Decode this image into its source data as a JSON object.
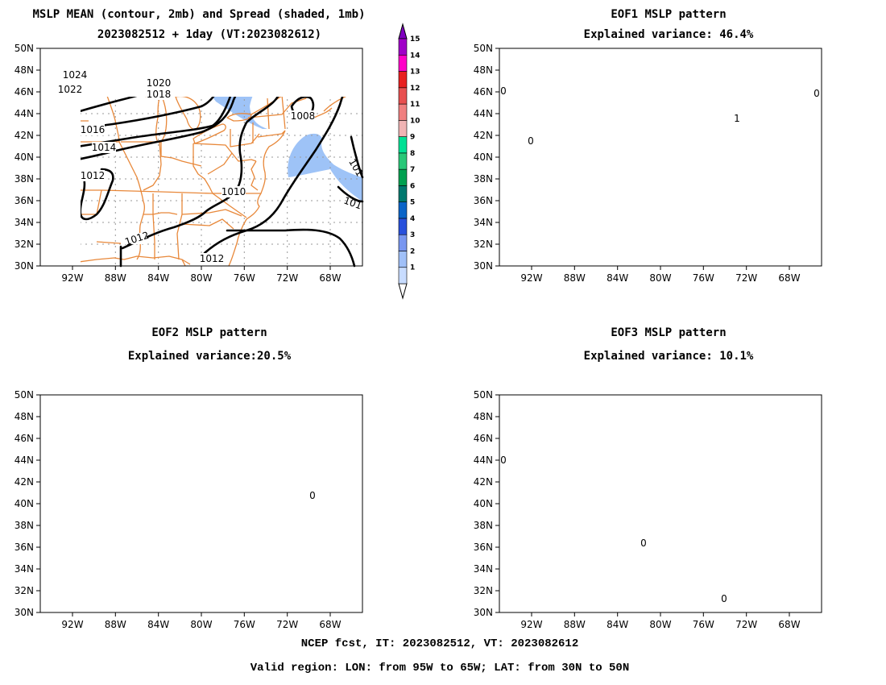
{
  "panels": [
    {
      "id": "mean",
      "title1": "MSLP MEAN (contour, 2mb) and Spread (shaded, 1mb)",
      "title2": "2023082512 + 1day (VT:2023082612)"
    },
    {
      "id": "eof1",
      "title1": "EOF1 MSLP pattern",
      "title2": "Explained variance: 46.4%"
    },
    {
      "id": "eof2",
      "title1": "EOF2 MSLP pattern",
      "title2": "Explained variance:20.5%"
    },
    {
      "id": "eof3",
      "title1": "EOF3 MSLP pattern",
      "title2": "Explained variance: 10.1%"
    }
  ],
  "lat_labels": [
    "30N",
    "32N",
    "34N",
    "36N",
    "38N",
    "40N",
    "42N",
    "44N",
    "46N",
    "48N",
    "50N"
  ],
  "lon_labels": [
    "92W",
    "88W",
    "84W",
    "80W",
    "76W",
    "72W",
    "68W"
  ],
  "mean_contour_labels": [
    "1024",
    "1022",
    "1020",
    "1018",
    "1016",
    "1014",
    "1012",
    "1010",
    "1008",
    "1012",
    "1012",
    "101",
    "101"
  ],
  "eof1_contour_labels": [
    "0",
    "0",
    "1",
    "0"
  ],
  "eof2_contour_labels": [
    "0"
  ],
  "eof3_contour_labels": [
    "0",
    "0",
    "0"
  ],
  "colorbar": {
    "labels": [
      "1",
      "2",
      "3",
      "4",
      "5",
      "6",
      "7",
      "8",
      "9",
      "10",
      "11",
      "12",
      "13",
      "14",
      "15"
    ],
    "colors": [
      "#c8dcff",
      "#a0c0f8",
      "#7896f0",
      "#2850dc",
      "#0a64c8",
      "#00786e",
      "#00a050",
      "#28c878",
      "#00e094",
      "#f0b4b4",
      "#f08080",
      "#e85050",
      "#e82020",
      "#ff00c8",
      "#a000c8"
    ],
    "below_color": "#ffffff",
    "above_color": "#8000c0"
  },
  "footer": {
    "line1": "NCEP fcst, IT: 2023082512, VT: 2023082612",
    "line2": "Valid region: LON: from 95W to 65W; LAT: from 30N to 50N"
  }
}
